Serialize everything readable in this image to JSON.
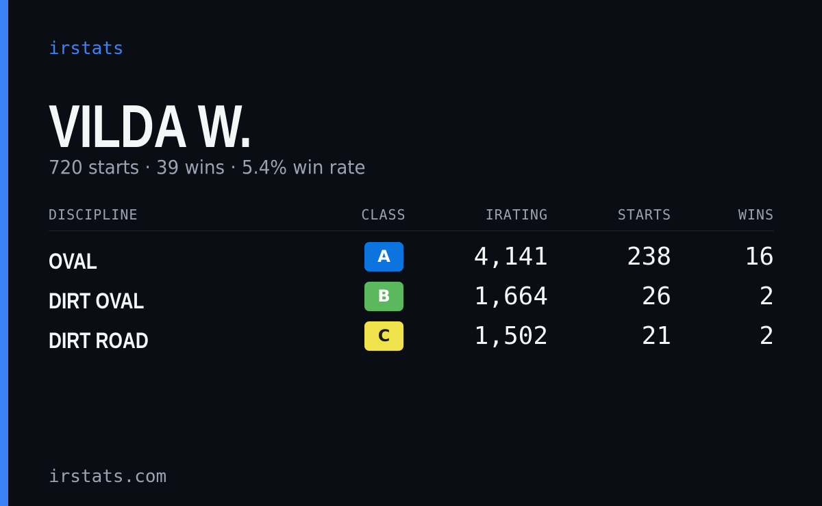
{
  "brand": "irstats",
  "profile": {
    "name": "VILDA W.",
    "summary": "720 starts · 39 wins · 5.4% win rate"
  },
  "table": {
    "headers": [
      "DISCIPLINE",
      "CLASS",
      "IRATING",
      "STARTS",
      "WINS"
    ],
    "rows": [
      [
        "OVAL",
        "A",
        "4,141",
        "238",
        "16"
      ],
      [
        "DIRT OVAL",
        "B",
        "1,664",
        "26",
        "2"
      ],
      [
        "DIRT ROAD",
        "C",
        "1,502",
        "21",
        "2"
      ]
    ]
  },
  "footer": "irstats.com"
}
